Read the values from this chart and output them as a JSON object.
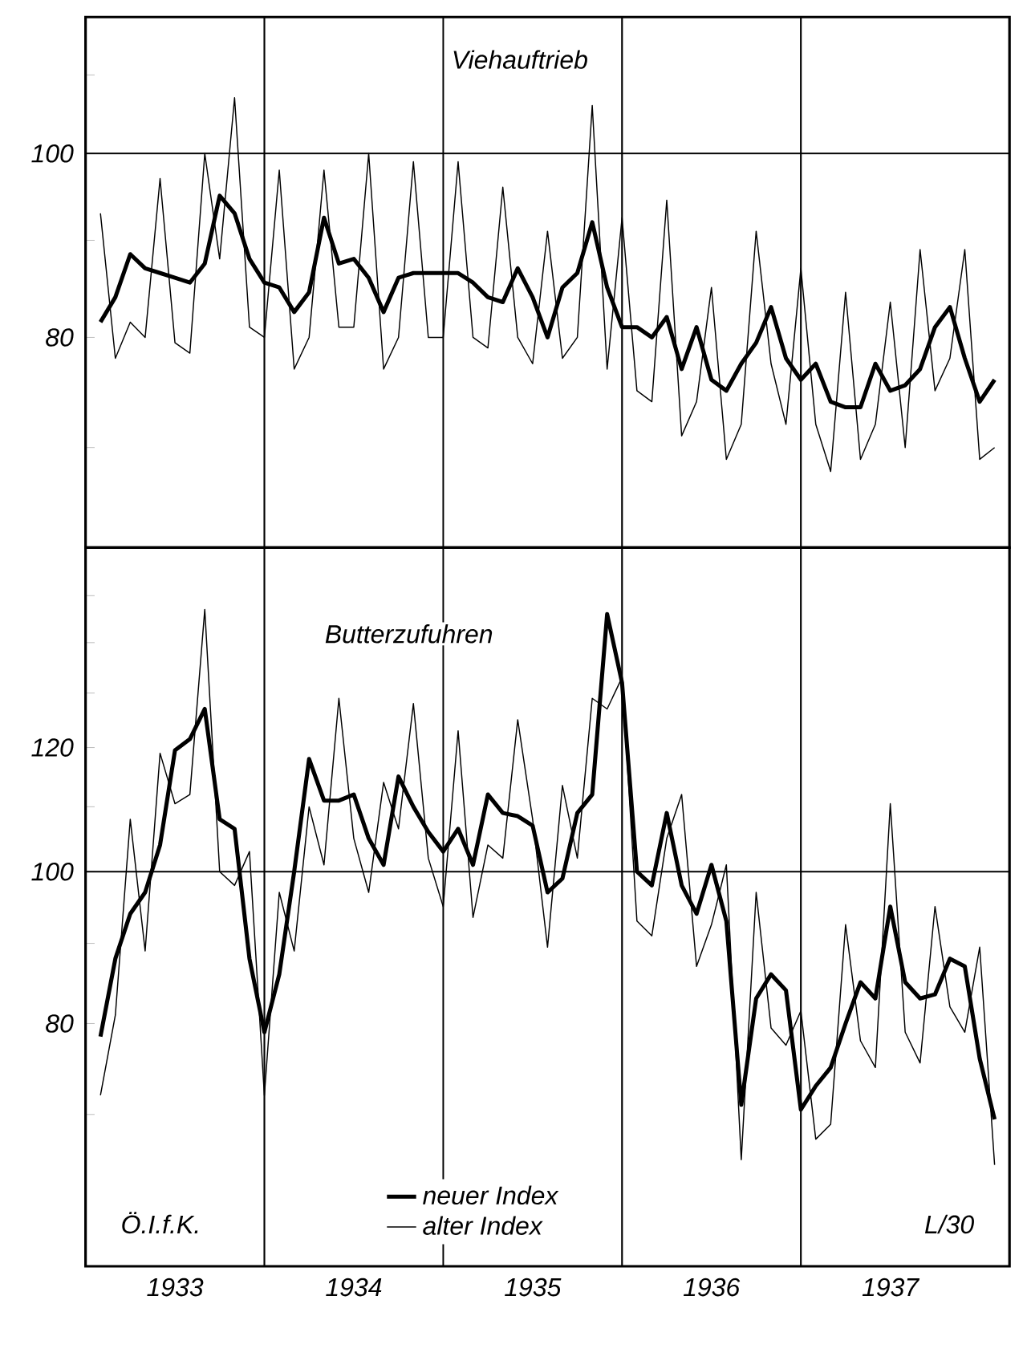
{
  "chart_data": [
    {
      "type": "line",
      "title": "Viehauftrieb",
      "log": true,
      "tick_labels": "y",
      "x": [
        "1933-01",
        "1933-02",
        "1933-03",
        "1933-04",
        "1933-05",
        "1933-06",
        "1933-07",
        "1933-08",
        "1933-09",
        "1933-10",
        "1933-11",
        "1933-12",
        "1934-01",
        "1934-02",
        "1934-03",
        "1934-04",
        "1934-05",
        "1934-06",
        "1934-07",
        "1934-08",
        "1934-09",
        "1934-10",
        "1934-11",
        "1934-12",
        "1935-01",
        "1935-02",
        "1935-03",
        "1935-04",
        "1935-05",
        "1935-06",
        "1935-07",
        "1935-08",
        "1935-09",
        "1935-10",
        "1935-11",
        "1935-12",
        "1936-01",
        "1936-02",
        "1936-03",
        "1936-04",
        "1936-05",
        "1936-06",
        "1936-07",
        "1936-08",
        "1936-09",
        "1936-10",
        "1936-11",
        "1936-12",
        "1937-01",
        "1937-02",
        "1937-03",
        "1937-04",
        "1937-05",
        "1937-06",
        "1937-07",
        "1937-08",
        "1937-09",
        "1937-10",
        "1937-11",
        "1937-12",
        "1938-01"
      ],
      "xlim": [
        "1932-12",
        "1938-02"
      ],
      "ylim": [
        62,
        118
      ],
      "yticks": [
        {
          "value": 110,
          "label": null
        },
        100,
        {
          "value": 90,
          "label": null
        },
        80,
        {
          "value": 70,
          "label": null
        }
      ],
      "ref_lines": [
        {
          "axis": "y",
          "value": 100
        },
        {
          "axis": "x",
          "value": "1933-12"
        },
        {
          "axis": "x",
          "value": "1934-12"
        },
        {
          "axis": "x",
          "value": "1935-12"
        },
        {
          "axis": "x",
          "value": "1936-12"
        }
      ],
      "series": [
        {
          "color": "#000000",
          "values": [
            81.5,
            84,
            88.5,
            87,
            86.5,
            86,
            85.5,
            87.5,
            95,
            93,
            88,
            85.5,
            85,
            82.5,
            84.5,
            92.5,
            87.5,
            88,
            86,
            82.5,
            86,
            86.5,
            86.5,
            86.5,
            86.5,
            85.5,
            84,
            83.5,
            87,
            84,
            80,
            85,
            86.5,
            92,
            85,
            81,
            81,
            80,
            82,
            77,
            81,
            76,
            75,
            77.5,
            79.5,
            83,
            78,
            76,
            77.5,
            74,
            73.5,
            73.5,
            77.5,
            75,
            75.5,
            77,
            81,
            83,
            78,
            74,
            76
          ]
        },
        {
          "color": "#000000",
          "values": [
            93,
            78,
            81.5,
            80,
            97,
            79.5,
            78.5,
            100,
            88,
            107,
            81,
            80,
            98,
            77,
            80,
            98,
            81,
            81,
            100,
            77,
            80,
            99,
            80,
            80,
            99,
            80,
            79,
            96,
            80,
            77.5,
            91,
            78,
            80,
            106,
            77,
            92.5,
            75,
            74,
            94.5,
            71,
            74,
            85,
            69,
            72,
            91,
            77.5,
            72,
            87,
            72,
            68,
            84.5,
            69,
            72,
            83.5,
            70,
            89,
            75,
            78,
            89,
            69,
            70
          ]
        }
      ]
    },
    {
      "type": "line",
      "title": "Butterzufuhren",
      "log": true,
      "legend": "bottom",
      "x": [
        "1933-01",
        "1933-02",
        "1933-03",
        "1933-04",
        "1933-05",
        "1933-06",
        "1933-07",
        "1933-08",
        "1933-09",
        "1933-10",
        "1933-11",
        "1933-12",
        "1934-01",
        "1934-02",
        "1934-03",
        "1934-04",
        "1934-05",
        "1934-06",
        "1934-07",
        "1934-08",
        "1934-09",
        "1934-10",
        "1934-11",
        "1934-12",
        "1935-01",
        "1935-02",
        "1935-03",
        "1935-04",
        "1935-05",
        "1935-06",
        "1935-07",
        "1935-08",
        "1935-09",
        "1935-10",
        "1935-11",
        "1935-12",
        "1936-01",
        "1936-02",
        "1936-03",
        "1936-04",
        "1936-05",
        "1936-06",
        "1936-07",
        "1936-08",
        "1936-09",
        "1936-10",
        "1936-11",
        "1936-12",
        "1937-01",
        "1937-02",
        "1937-03",
        "1937-04",
        "1937-05",
        "1937-06",
        "1937-07",
        "1937-08",
        "1937-09",
        "1937-10",
        "1937-11",
        "1937-12",
        "1938-01"
      ],
      "xlim": [
        "1932-12",
        "1938-02"
      ],
      "xticks": [
        {
          "value": "1933-06",
          "label": "1933"
        },
        {
          "value": "1934-06",
          "label": "1934"
        },
        {
          "value": "1935-06",
          "label": "1935"
        },
        {
          "value": "1936-06",
          "label": "1936"
        },
        {
          "value": "1937-06",
          "label": "1937"
        }
      ],
      "ylim": [
        56,
        161
      ],
      "yticks": [
        {
          "value": 150,
          "label": null
        },
        {
          "value": 140,
          "label": null
        },
        {
          "value": 130,
          "label": null
        },
        120,
        {
          "value": 110,
          "label": null
        },
        100,
        {
          "value": 90,
          "label": null
        },
        80,
        {
          "value": 70,
          "label": null
        }
      ],
      "ref_lines": [
        {
          "axis": "y",
          "value": 100
        },
        {
          "axis": "x",
          "value": "1933-12"
        },
        {
          "axis": "x",
          "value": "1934-12"
        },
        {
          "axis": "x",
          "value": "1935-12"
        },
        {
          "axis": "x",
          "value": "1936-12"
        }
      ],
      "annotations": [
        "Ö.I.f.K.",
        "L/30"
      ],
      "series": [
        {
          "name": "neuer Index",
          "color": "#000000",
          "values": [
            78.5,
            88,
            94,
            97,
            104,
            119.5,
            121.5,
            127,
            108,
            106.5,
            88,
            79,
            86,
            100,
            118,
            111,
            111,
            112,
            105,
            101,
            115,
            110,
            106,
            103,
            106.5,
            101,
            112,
            109,
            108.5,
            107,
            97,
            99,
            109,
            112,
            146,
            132,
            100,
            98,
            109,
            98,
            94,
            101,
            93,
            71,
            83,
            86,
            84,
            70.5,
            73,
            75,
            80,
            85,
            83,
            95,
            85,
            83,
            83.5,
            88,
            87,
            76,
            69.5
          ]
        },
        {
          "name": "alter Index",
          "color": "#000000",
          "values": [
            72,
            81,
            108,
            89,
            119,
            110.5,
            112,
            147,
            100,
            98,
            103,
            72,
            97,
            89,
            110,
            101,
            129,
            105,
            97,
            114,
            106.5,
            128,
            102,
            95,
            123,
            93.5,
            104,
            102,
            125,
            108,
            89.5,
            113.5,
            102,
            129,
            127,
            133,
            93,
            91,
            105,
            112,
            87,
            92.5,
            101,
            65.5,
            97,
            79.5,
            77.5,
            81.5,
            67.5,
            69,
            92.5,
            78,
            75,
            110.5,
            79,
            75.5,
            95,
            82,
            79,
            89.5,
            65
          ]
        }
      ]
    }
  ]
}
